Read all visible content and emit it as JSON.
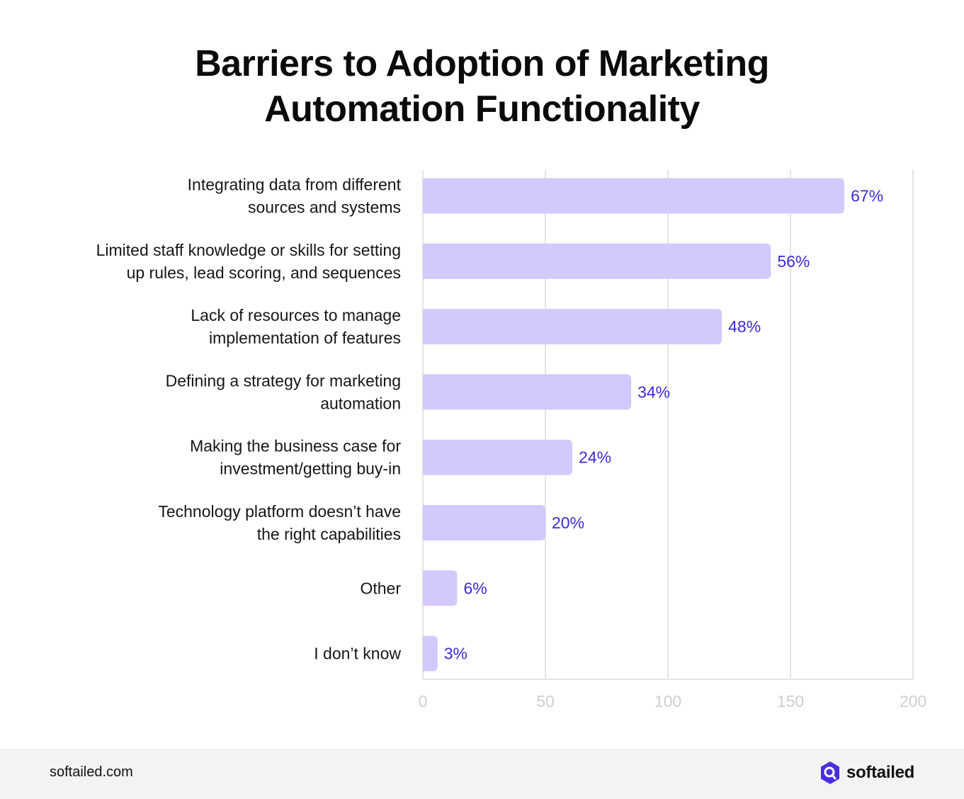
{
  "title_lines": [
    "Barriers to Adoption of Marketing",
    "Automation Functionality"
  ],
  "chart_data": {
    "type": "bar",
    "orientation": "horizontal",
    "title": "Barriers to Adoption of Marketing Automation Functionality",
    "categories": [
      [
        "Integrating data from different",
        "sources and systems"
      ],
      [
        "Limited staff knowledge or skills for setting",
        "up rules, lead scoring, and sequences"
      ],
      [
        "Lack of resources to manage",
        "implementation of features"
      ],
      [
        "Defining a strategy for marketing",
        "automation"
      ],
      [
        "Making the business case for",
        "investment/getting buy-in"
      ],
      [
        "Technology platform doesn’t have",
        "the right capabilities"
      ],
      [
        "Other"
      ],
      [
        "I don’t know"
      ]
    ],
    "values": [
      172,
      142,
      122,
      85,
      61,
      50,
      14,
      6
    ],
    "value_labels": [
      "67%",
      "56%",
      "48%",
      "34%",
      "24%",
      "20%",
      "6%",
      "3%"
    ],
    "xlim": [
      0,
      200
    ],
    "xticks": [
      "0",
      "50",
      "100",
      "150",
      "200"
    ],
    "xtick_values": [
      0,
      50,
      100,
      150,
      200
    ],
    "grid": "vertical",
    "colors": {
      "bar": "#d3c9fc",
      "value_label": "#3b2bd6",
      "grid": "#dcdcdc",
      "tick_label": "#cfcfcf"
    }
  },
  "footer": {
    "site": "softailed.com",
    "brand_name": "softailed",
    "brand_icon": "softailed-logo-icon",
    "brand_color": "#4b2ee0"
  }
}
